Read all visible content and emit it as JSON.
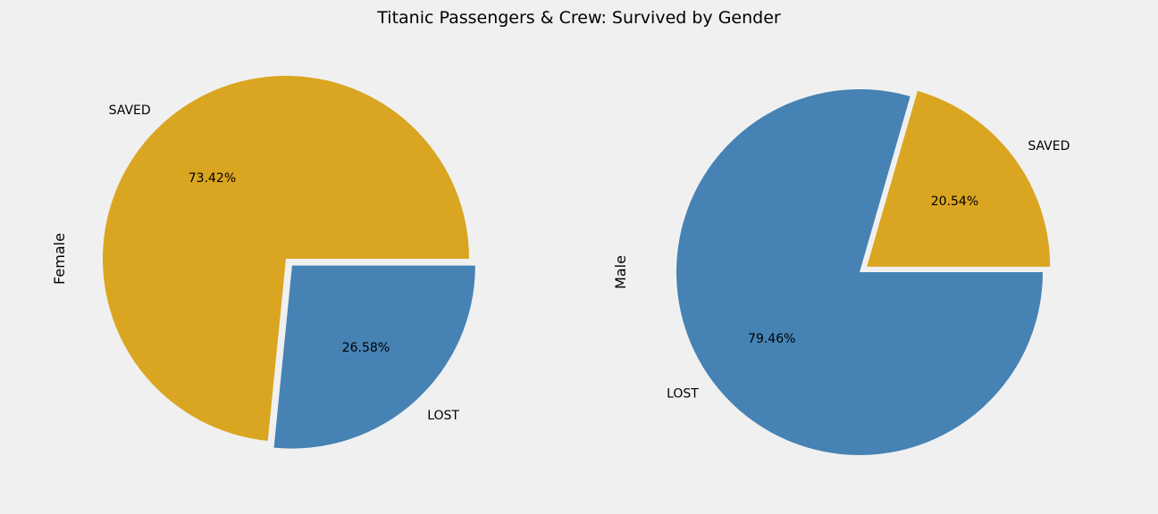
{
  "title": "Titanic Passengers & Crew: Survived by Gender",
  "colors": {
    "background": "#f0f0f0",
    "saved": "#daa520",
    "lost": "#4682b4"
  },
  "chart_data": [
    {
      "type": "pie",
      "ylabel": "Female",
      "explode": [
        0,
        0.05
      ],
      "start_angle_deg": 0,
      "slices": [
        {
          "label": "SAVED",
          "value": 73.42,
          "pct_label": "73.42%",
          "color": "#daa520"
        },
        {
          "label": "LOST",
          "value": 26.58,
          "pct_label": "26.58%",
          "color": "#4682b4"
        }
      ]
    },
    {
      "type": "pie",
      "ylabel": "Male",
      "explode": [
        0.05,
        0
      ],
      "start_angle_deg": 0,
      "slices": [
        {
          "label": "SAVED",
          "value": 20.54,
          "pct_label": "20.54%",
          "color": "#daa520"
        },
        {
          "label": "LOST",
          "value": 79.46,
          "pct_label": "79.46%",
          "color": "#4682b4"
        }
      ]
    }
  ]
}
